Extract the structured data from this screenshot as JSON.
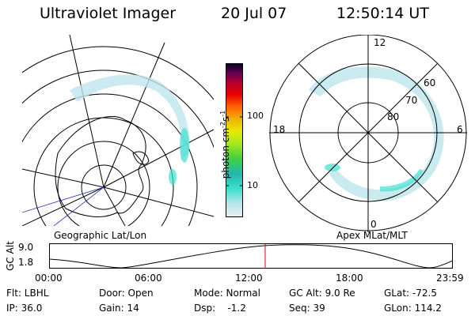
{
  "header": {
    "instrument": "Ultraviolet Imager",
    "date": "20 Jul 07",
    "time": "12:50:14 UT"
  },
  "left_panel": {
    "caption": "Geographic Lat/Lon"
  },
  "right_panel": {
    "caption": "Apex MLat/MLT",
    "mlt_labels": [
      "12",
      "18",
      "6",
      "0"
    ],
    "mlat_labels": [
      "60",
      "70",
      "80"
    ]
  },
  "colorbar": {
    "unit": "photon cm",
    "unit_sup1": "-2",
    "unit_s": "s",
    "unit_sup2": "-1",
    "ticks": [
      "100",
      "10"
    ],
    "scale": "log",
    "colors": [
      "#e8eef2",
      "#bfe6ec",
      "#40e0d0",
      "#20b8b0",
      "#40d040",
      "#a8e820",
      "#e8e800",
      "#f0b000",
      "#ff6000",
      "#e80000",
      "#b00030",
      "#600050",
      "#000020"
    ]
  },
  "altitude_plot": {
    "ylabel": "GC Alt",
    "yticks": [
      "9.0",
      "1.8"
    ],
    "xticks": [
      "00:00",
      "06:00",
      "12:00",
      "18:00",
      "23:59"
    ],
    "current_time_hours": 12.837,
    "marker_color": "#e00000"
  },
  "info": {
    "flt": "Flt: LBHL",
    "ip": "IP: 36.0",
    "door": "Door: Open",
    "gain": "Gain: 14",
    "mode": "Mode: Normal",
    "dsp": "Dsp:    -1.2",
    "gcalt": "GC Alt: 9.0 Re",
    "seq": "Seq: 39",
    "glat": "GLat: -72.5",
    "glon": "GLon: 114.2"
  }
}
